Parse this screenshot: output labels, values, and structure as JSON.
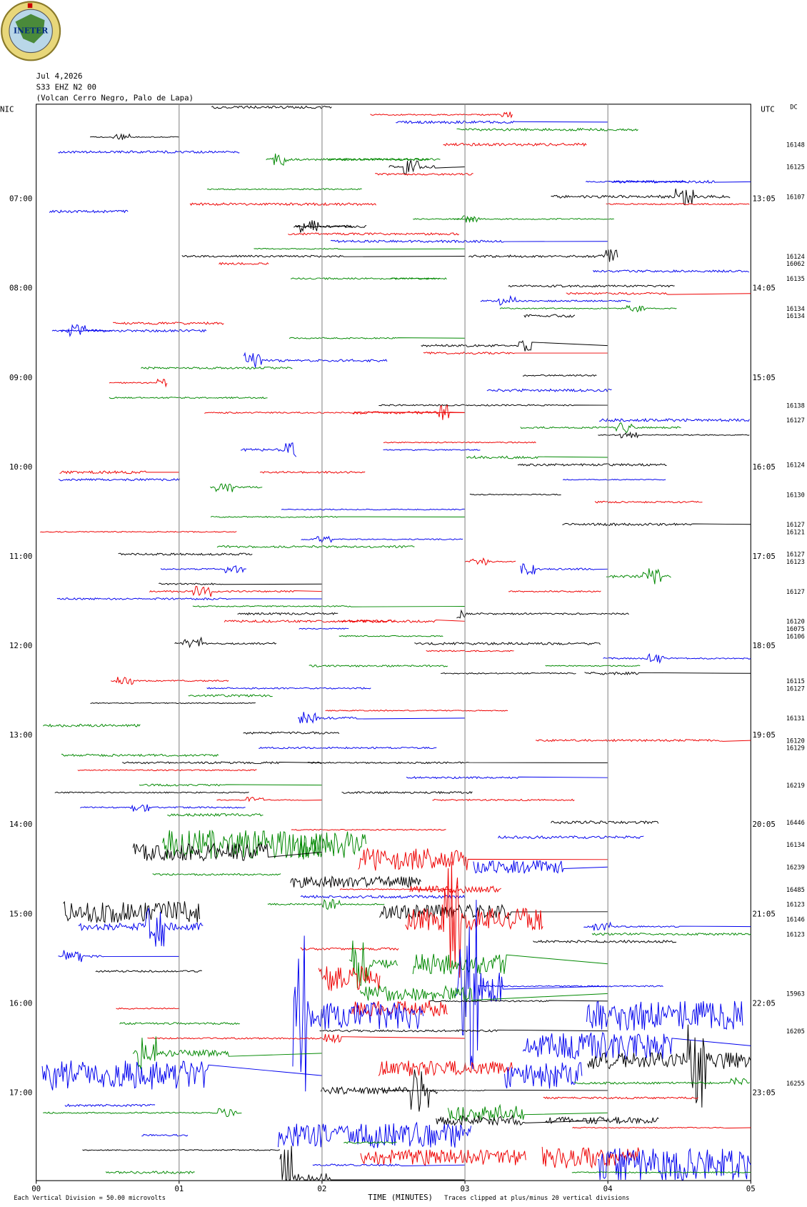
{
  "logo": {
    "text": "INETER"
  },
  "header": {
    "date": "Jul 4,2026",
    "station": "S33 EHZ N2 00",
    "location": "(Volcan Cerro Negro, Palo de Lapa)"
  },
  "left_zone": "NIC",
  "right_zone": "UTC",
  "dc_title": "DC",
  "left_labels": [
    "07:00",
    "08:00",
    "09:00",
    "10:00",
    "11:00",
    "12:00",
    "13:00",
    "14:00",
    "15:00",
    "16:00",
    "17:00"
  ],
  "right_labels": [
    "13:05",
    "14:05",
    "15:05",
    "16:05",
    "17:05",
    "18:05",
    "19:05",
    "20:05",
    "21:05",
    "22:05",
    "23:05"
  ],
  "dc_values": [
    null,
    null,
    null,
    null,
    null,
    16148,
    null,
    null,
    16125,
    null,
    null,
    null,
    16107,
    null,
    null,
    null,
    null,
    null,
    null,
    null,
    16124,
    16062,
    null,
    16135,
    null,
    null,
    null,
    16134,
    16134,
    null,
    null,
    null,
    null,
    null,
    null,
    null,
    null,
    null,
    null,
    null,
    16138,
    null,
    16127,
    null,
    null,
    null,
    null,
    null,
    16124,
    null,
    null,
    null,
    16130,
    null,
    null,
    null,
    16127,
    16121,
    null,
    null,
    16127,
    16123,
    null,
    null,
    null,
    16127,
    null,
    null,
    null,
    16120,
    16075,
    16106,
    null,
    null,
    null,
    null,
    null,
    16115,
    16127,
    null,
    null,
    null,
    16131,
    null,
    null,
    16120,
    16129,
    null,
    null,
    null,
    null,
    16219,
    null,
    null,
    null,
    null,
    16446,
    null,
    null,
    16134,
    null,
    null,
    16239,
    null,
    null,
    16485,
    null,
    16123,
    null,
    16146,
    null,
    16123,
    null,
    null,
    null,
    null,
    null,
    null,
    null,
    15963,
    null,
    null,
    null,
    null,
    16205,
    null,
    null,
    null,
    null,
    null,
    null,
    16255,
    null,
    null,
    null,
    null,
    null,
    null,
    null,
    null,
    null,
    null,
    null,
    null,
    null
  ],
  "x_labels": [
    "00",
    "01",
    "02",
    "03",
    "04",
    "05"
  ],
  "x_title": "TIME (MINUTES)",
  "footer_left": "Each Vertical Division =    50.00 microvolts",
  "footer_right": "Traces clipped at plus/minus 20 vertical divisions"
}
